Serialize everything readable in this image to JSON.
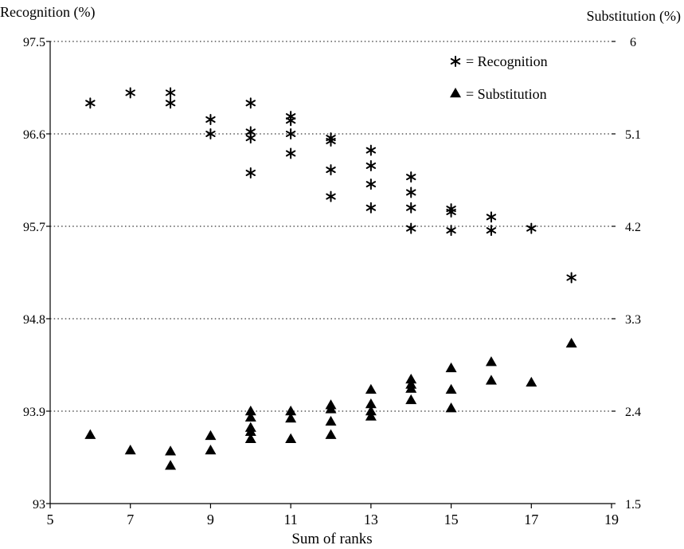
{
  "chart_data": {
    "type": "scatter",
    "xlabel": "Sum of ranks",
    "ylabel_left": "Recognition (%)",
    "ylabel_right": "Substitution (%)",
    "xlim": [
      5,
      19
    ],
    "ylim_left": [
      93,
      97.5
    ],
    "ylim_right": [
      1.5,
      6
    ],
    "x_ticks": [
      "5",
      "7",
      "9",
      "11",
      "13",
      "15",
      "17",
      "19"
    ],
    "y_ticks_left": [
      "93",
      "93.9",
      "94.8",
      "95.7",
      "96.6",
      "97.5"
    ],
    "y_ticks_right": [
      "1.5",
      "2.4",
      "3.3",
      "4.2",
      "5.1",
      "6"
    ],
    "grid": "horizontal dotted",
    "legend_position": "top-right",
    "legend": [
      "= Recognition",
      "= Substitution"
    ],
    "series": [
      {
        "name": "Recognition",
        "axis": "left",
        "marker": "asterisk",
        "points": [
          [
            6,
            96.9
          ],
          [
            7,
            97.0
          ],
          [
            8,
            97.0
          ],
          [
            8,
            96.9
          ],
          [
            9,
            96.74
          ],
          [
            9,
            96.6
          ],
          [
            10,
            96.9
          ],
          [
            10,
            96.62
          ],
          [
            10,
            96.56
          ],
          [
            10,
            96.22
          ],
          [
            11,
            96.77
          ],
          [
            11,
            96.73
          ],
          [
            11,
            96.6
          ],
          [
            11,
            96.41
          ],
          [
            12,
            96.56
          ],
          [
            12,
            96.53
          ],
          [
            12,
            96.25
          ],
          [
            12,
            95.99
          ],
          [
            13,
            96.44
          ],
          [
            13,
            96.29
          ],
          [
            13,
            96.11
          ],
          [
            13,
            95.88
          ],
          [
            14,
            96.18
          ],
          [
            14,
            96.03
          ],
          [
            14,
            95.88
          ],
          [
            14,
            95.68
          ],
          [
            15,
            95.87
          ],
          [
            15,
            95.84
          ],
          [
            15,
            95.66
          ],
          [
            16,
            95.79
          ],
          [
            16,
            95.66
          ],
          [
            17,
            95.68
          ],
          [
            18,
            95.2
          ]
        ]
      },
      {
        "name": "Substitution",
        "axis": "right",
        "marker": "triangle",
        "points": [
          [
            6,
            2.17
          ],
          [
            7,
            2.02
          ],
          [
            8,
            2.01
          ],
          [
            8,
            1.87
          ],
          [
            9,
            2.16
          ],
          [
            9,
            2.02
          ],
          [
            10,
            2.4
          ],
          [
            10,
            2.34
          ],
          [
            10,
            2.24
          ],
          [
            10,
            2.2
          ],
          [
            10,
            2.13
          ],
          [
            11,
            2.4
          ],
          [
            11,
            2.33
          ],
          [
            11,
            2.13
          ],
          [
            12,
            2.46
          ],
          [
            12,
            2.42
          ],
          [
            12,
            2.3
          ],
          [
            12,
            2.17
          ],
          [
            13,
            2.61
          ],
          [
            13,
            2.47
          ],
          [
            13,
            2.4
          ],
          [
            13,
            2.35
          ],
          [
            14,
            2.71
          ],
          [
            14,
            2.66
          ],
          [
            14,
            2.62
          ],
          [
            14,
            2.51
          ],
          [
            15,
            2.82
          ],
          [
            15,
            2.61
          ],
          [
            15,
            2.43
          ],
          [
            16,
            2.88
          ],
          [
            16,
            2.7
          ],
          [
            17,
            2.68
          ],
          [
            18,
            3.06
          ]
        ]
      }
    ]
  }
}
